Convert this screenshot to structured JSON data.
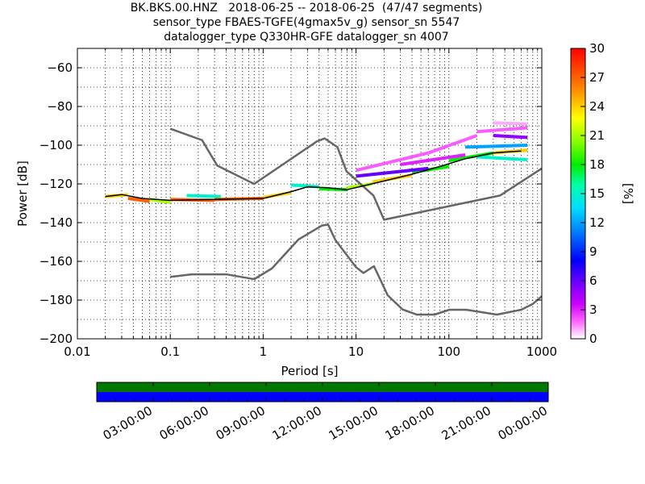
{
  "title_lines": [
    "BK.BKS.00.HNZ   2018-06-25 -- 2018-06-25  (47/47 segments)",
    "sensor_type FBAES-TGFE(4gmax5v_g) sensor_sn 5547",
    "datalogger_type Q330HR-GFE datalogger_sn 4007"
  ],
  "chart_data": {
    "type": "line",
    "xlabel": "Period [s]",
    "ylabel": "Power [dB]",
    "x_scale": "log",
    "xlim": [
      0.01,
      1000
    ],
    "ylim": [
      -200,
      -50
    ],
    "x_ticks": [
      0.01,
      0.1,
      1,
      10,
      100,
      1000
    ],
    "x_tick_labels": [
      "0.01",
      "0.1",
      "1",
      "10",
      "100",
      "1000"
    ],
    "y_ticks": [
      -200,
      -180,
      -160,
      -140,
      -120,
      -100,
      -80,
      -60
    ],
    "y_tick_labels": [
      "−200",
      "−180",
      "−160",
      "−140",
      "−120",
      "−100",
      "−80",
      "−60"
    ],
    "grid": true,
    "colorbar": {
      "label": "[%]",
      "range": [
        0,
        30
      ],
      "ticks": [
        0,
        3,
        6,
        9,
        12,
        15,
        18,
        21,
        24,
        27,
        30
      ]
    },
    "series": [
      {
        "role": "upper-reference",
        "color": "#666666",
        "x": [
          0.1,
          0.22,
          0.32,
          0.8,
          3.8,
          4.6,
          6.3,
          7.9,
          15.4,
          20.0,
          354.8,
          1000
        ],
        "y": [
          -91.5,
          -97.4,
          -110.5,
          -120.0,
          -98.0,
          -96.5,
          -101.0,
          -113.5,
          -126.0,
          -138.5,
          -126.0,
          -112.0
        ]
      },
      {
        "role": "lower-reference",
        "color": "#666666",
        "x": [
          0.1,
          0.17,
          0.4,
          0.8,
          1.24,
          2.4,
          4.3,
          5.0,
          6.0,
          10.0,
          12.0,
          15.6,
          21.9,
          31.6,
          45.0,
          70.0,
          101.0,
          154.0,
          328.0,
          600.0,
          800.0,
          1000.0
        ],
        "y": [
          -168.0,
          -166.7,
          -166.7,
          -169.2,
          -163.7,
          -148.7,
          -141.5,
          -141.0,
          -149.0,
          -163.0,
          -166.0,
          -162.5,
          -177.5,
          -184.8,
          -187.5,
          -187.5,
          -185.0,
          -185.0,
          -187.5,
          -185.0,
          -182.0,
          -178.0
        ]
      },
      {
        "role": "mode",
        "color": "#000000",
        "x": [
          0.02,
          0.03,
          0.05,
          0.1,
          0.3,
          1,
          2,
          3,
          5,
          8,
          12,
          20,
          40,
          80,
          150,
          300,
          600
        ],
        "y": [
          -126.5,
          -125.5,
          -127.5,
          -128.5,
          -128,
          -127.5,
          -124,
          -121.5,
          -122,
          -123,
          -121,
          -118.5,
          -115,
          -111,
          -107,
          -104,
          -103
        ]
      }
    ],
    "pdf_bins": [
      {
        "x": [
          0.02,
          0.035
        ],
        "y": [
          -126.5,
          -125.5
        ],
        "pct": 24
      },
      {
        "x": [
          0.035,
          0.06
        ],
        "y": [
          -127.5,
          -129
        ],
        "pct": 27
      },
      {
        "x": [
          0.06,
          0.1
        ],
        "y": [
          -128,
          -129.5
        ],
        "pct": 21
      },
      {
        "x": [
          0.1,
          0.3
        ],
        "y": [
          -128,
          -128.5
        ],
        "pct": 27
      },
      {
        "x": [
          0.15,
          0.35
        ],
        "y": [
          -126,
          -126.5
        ],
        "pct": 15
      },
      {
        "x": [
          0.3,
          1
        ],
        "y": [
          -128,
          -127.5
        ],
        "pct": 27
      },
      {
        "x": [
          1,
          2
        ],
        "y": [
          -127,
          -124.5
        ],
        "pct": 24
      },
      {
        "x": [
          2,
          4
        ],
        "y": [
          -120.5,
          -121.5
        ],
        "pct": 15
      },
      {
        "x": [
          4,
          8
        ],
        "y": [
          -122.5,
          -123
        ],
        "pct": 18
      },
      {
        "x": [
          8,
          15
        ],
        "y": [
          -122,
          -120
        ],
        "pct": 21
      },
      {
        "x": [
          15,
          40
        ],
        "y": [
          -119,
          -115.5
        ],
        "pct": 24
      },
      {
        "x": [
          40,
          100
        ],
        "y": [
          -114,
          -111
        ],
        "pct": 18
      },
      {
        "x": [
          100,
          300
        ],
        "y": [
          -108,
          -104
        ],
        "pct": 18
      },
      {
        "x": [
          300,
          700
        ],
        "y": [
          -104,
          -102.5
        ],
        "pct": 24
      },
      {
        "x": [
          150,
          700
        ],
        "y": [
          -101,
          -100
        ],
        "pct": 12
      },
      {
        "x": [
          200,
          700
        ],
        "y": [
          -106,
          -107.5
        ],
        "pct": 15
      },
      {
        "x": [
          10,
          60
        ],
        "y": [
          -116,
          -112
        ],
        "pct": 6
      },
      {
        "x": [
          30,
          150
        ],
        "y": [
          -110,
          -105
        ],
        "pct": 3
      },
      {
        "x": [
          10,
          60
        ],
        "y": [
          -113,
          -104
        ],
        "pct": 2
      },
      {
        "x": [
          60,
          200
        ],
        "y": [
          -104,
          -95
        ],
        "pct": 2
      },
      {
        "x": [
          200,
          700
        ],
        "y": [
          -93,
          -91
        ],
        "pct": 2
      },
      {
        "x": [
          300,
          700
        ],
        "y": [
          -95,
          -96
        ],
        "pct": 5
      },
      {
        "x": [
          300,
          700
        ],
        "y": [
          -88.5,
          -89
        ],
        "pct": 1
      }
    ],
    "timeline": {
      "tick_labels": [
        "03:00:00",
        "06:00:00",
        "09:00:00",
        "12:00:00",
        "15:00:00",
        "18:00:00",
        "21:00:00",
        "00:00:00"
      ],
      "bands": [
        {
          "color": "#007700",
          "coverage": 1.0
        },
        {
          "color": "#0000ff",
          "coverage": 1.0
        }
      ]
    }
  }
}
